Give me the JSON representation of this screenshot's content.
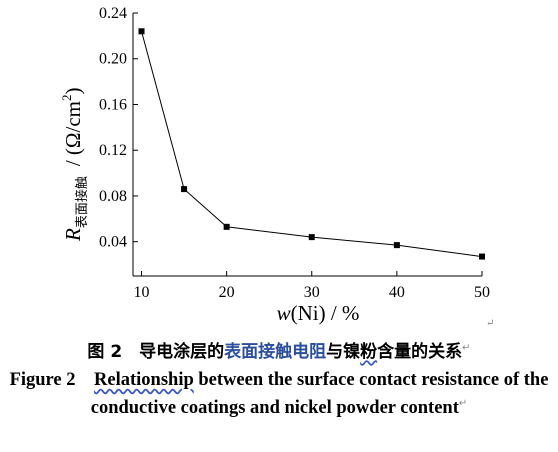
{
  "chart_data": {
    "type": "line",
    "x": [
      10,
      15,
      20,
      30,
      40,
      50
    ],
    "y": [
      0.224,
      0.086,
      0.053,
      0.044,
      0.037,
      0.027
    ],
    "xlim": [
      9,
      50
    ],
    "ylim": [
      0.01,
      0.24
    ],
    "xticks": [
      "10",
      "20",
      "30",
      "40",
      "50"
    ],
    "yticks": [
      "0.04",
      "0.08",
      "0.12",
      "0.16",
      "0.20",
      "0.24"
    ],
    "xlabel": {
      "main": "w",
      "rest": "(Ni) / %"
    },
    "ylabel": {
      "main": "R",
      "sub": "表面接触",
      "unit": "/ (Ω/cm",
      "sup": "2",
      "close": ")"
    },
    "grid": false,
    "marker": "square"
  },
  "caption": {
    "cn_prefix": "图 2　导电涂层的",
    "cn_highlight": "表面接触电阻",
    "cn_mid": "与镍",
    "cn_underlined": "粉",
    "cn_suffix": "含量的关系",
    "en_prefix": "Figure 2　",
    "en_underlined": "Relationship",
    "en_rest": " between the surface contact resistance of the conductive coatings and nickel powder content",
    "return_mark": "↵"
  }
}
